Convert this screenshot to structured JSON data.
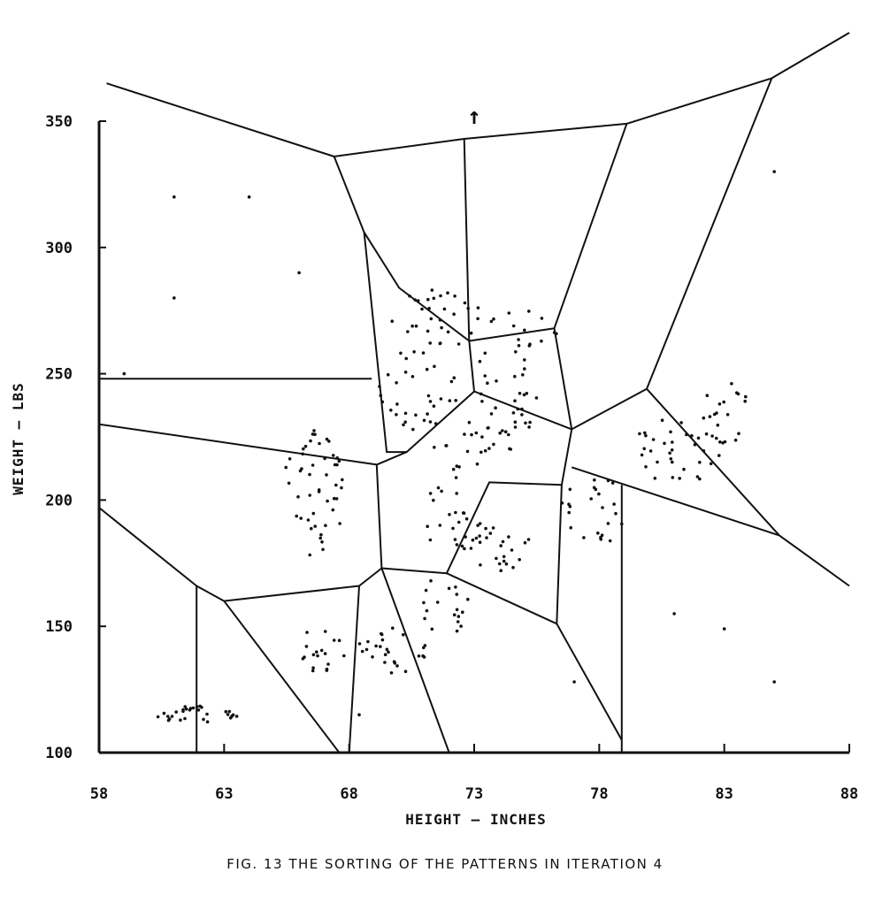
{
  "chart_data": {
    "type": "scatter",
    "xlabel": "HEIGHT — INCHES",
    "ylabel": "WEIGHT — LBS",
    "xlim": [
      58,
      88
    ],
    "ylim": [
      100,
      350
    ],
    "x_ticks": [
      "58",
      "63",
      "68",
      "73",
      "78",
      "83",
      "88"
    ],
    "y_ticks": [
      "100",
      "150",
      "200",
      "250",
      "300",
      "350"
    ],
    "grid": false,
    "legend": "none",
    "ink_color": "#111111",
    "annotation": "↑",
    "regions": [
      [
        [
          58.3,
          365
        ],
        [
          67.4,
          336
        ],
        [
          72.6,
          343
        ],
        [
          79.1,
          349
        ],
        [
          84.9,
          367
        ],
        [
          88,
          385
        ]
      ],
      [
        [
          67.4,
          336
        ],
        [
          68.6,
          306
        ],
        [
          69.5,
          219
        ],
        [
          70.3,
          219
        ],
        [
          73.0,
          243
        ],
        [
          72.8,
          263
        ],
        [
          70.0,
          284
        ],
        [
          68.6,
          306
        ]
      ],
      [
        [
          72.6,
          343
        ],
        [
          72.8,
          263
        ]
      ],
      [
        [
          72.8,
          263
        ],
        [
          76.2,
          268
        ],
        [
          79.1,
          349
        ]
      ],
      [
        [
          76.2,
          268
        ],
        [
          76.9,
          228
        ],
        [
          79.9,
          244
        ],
        [
          84.9,
          367
        ]
      ],
      [
        [
          73.0,
          243
        ],
        [
          76.9,
          228
        ],
        [
          76.5,
          206
        ],
        [
          73.6,
          207
        ],
        [
          71.9,
          171
        ],
        [
          69.3,
          173
        ],
        [
          69.1,
          214
        ],
        [
          70.3,
          219
        ]
      ],
      [
        [
          58,
          248
        ],
        [
          68.9,
          248
        ]
      ],
      [
        [
          58,
          230
        ],
        [
          69.1,
          214
        ]
      ],
      [
        [
          58,
          197
        ],
        [
          61.9,
          166
        ],
        [
          63.0,
          160
        ],
        [
          68.4,
          166
        ],
        [
          69.3,
          173
        ]
      ],
      [
        [
          61.9,
          166
        ],
        [
          61.9,
          100
        ]
      ],
      [
        [
          63.0,
          160
        ],
        [
          67.6,
          100
        ]
      ],
      [
        [
          68.4,
          166
        ],
        [
          68.0,
          100
        ]
      ],
      [
        [
          69.3,
          173
        ],
        [
          72.0,
          100
        ]
      ],
      [
        [
          71.9,
          171
        ],
        [
          76.3,
          151
        ],
        [
          76.5,
          206
        ]
      ],
      [
        [
          76.3,
          151
        ],
        [
          78.9,
          105
        ]
      ],
      [
        [
          78.9,
          100
        ],
        [
          78.9,
          206
        ]
      ],
      [
        [
          76.9,
          213
        ],
        [
          85.2,
          186
        ],
        [
          88,
          166
        ]
      ],
      [
        [
          79.9,
          244
        ],
        [
          85.2,
          186
        ]
      ]
    ],
    "clusters": [
      {
        "cx": 71.5,
        "cy": 272,
        "rx": 1.8,
        "ry": 12,
        "n": 30
      },
      {
        "cx": 75.0,
        "cy": 268,
        "rx": 1.4,
        "ry": 10,
        "n": 14
      },
      {
        "cx": 70.8,
        "cy": 245,
        "rx": 1.6,
        "ry": 18,
        "n": 34
      },
      {
        "cx": 74.5,
        "cy": 244,
        "rx": 1.6,
        "ry": 20,
        "n": 30
      },
      {
        "cx": 72.9,
        "cy": 222,
        "rx": 1.6,
        "ry": 10,
        "n": 22
      },
      {
        "cx": 66.6,
        "cy": 205,
        "rx": 1.2,
        "ry": 28,
        "n": 48
      },
      {
        "cx": 72.0,
        "cy": 195,
        "rx": 1.0,
        "ry": 18,
        "n": 22
      },
      {
        "cx": 74.0,
        "cy": 182,
        "rx": 1.3,
        "ry": 12,
        "n": 26
      },
      {
        "cx": 77.8,
        "cy": 196,
        "rx": 1.4,
        "ry": 14,
        "n": 24
      },
      {
        "cx": 81.2,
        "cy": 220,
        "rx": 1.8,
        "ry": 14,
        "n": 34
      },
      {
        "cx": 83.2,
        "cy": 236,
        "rx": 1.1,
        "ry": 14,
        "n": 20
      },
      {
        "cx": 71.8,
        "cy": 158,
        "rx": 1.0,
        "ry": 12,
        "n": 18
      },
      {
        "cx": 69.8,
        "cy": 140,
        "rx": 1.5,
        "ry": 10,
        "n": 26
      },
      {
        "cx": 66.9,
        "cy": 140,
        "rx": 1.1,
        "ry": 9,
        "n": 18
      },
      {
        "cx": 62.0,
        "cy": 115,
        "rx": 1.8,
        "ry": 3.5,
        "n": 30
      }
    ],
    "isolated_points": [
      [
        59.0,
        250
      ],
      [
        61.0,
        320
      ],
      [
        61.0,
        280
      ],
      [
        64.0,
        320
      ],
      [
        66.0,
        290
      ],
      [
        68.4,
        115
      ],
      [
        77.0,
        128
      ],
      [
        81.0,
        155
      ],
      [
        83.0,
        149
      ],
      [
        85.0,
        128
      ],
      [
        85.0,
        330
      ]
    ]
  },
  "caption": "FIG. 13  THE SORTING OF THE PATTERNS IN ITERATION 4"
}
